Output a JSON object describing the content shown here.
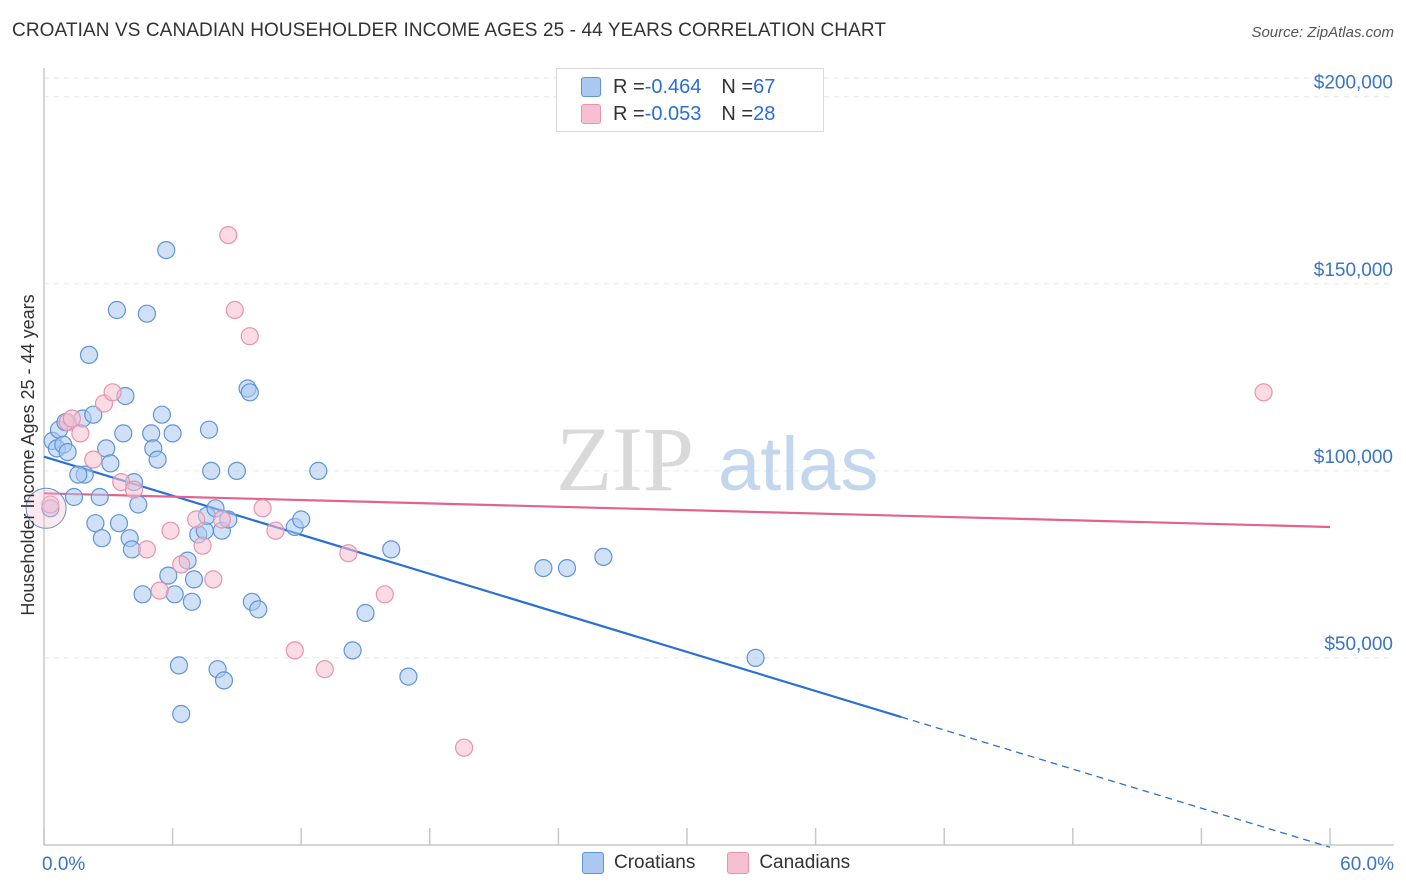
{
  "title": "CROATIAN VS CANADIAN HOUSEHOLDER INCOME AGES 25 - 44 YEARS CORRELATION CHART",
  "source": "Source: ZipAtlas.com",
  "watermark": {
    "zip": "ZIP",
    "atlas": "atlas"
  },
  "colors": {
    "croatians_fill": "#aac8f0",
    "croatians_stroke": "#5f95d8",
    "croatians_line": "#2a70d4",
    "canadians_fill": "#f7c0d0",
    "canadians_stroke": "#e892ad",
    "canadians_line": "#e0648c",
    "tick_label": "#3a75c4",
    "grid": "#e6e6e6"
  },
  "legend": {
    "rows": [
      {
        "r_label": "R = ",
        "r_value": "-0.464",
        "n_label": "N = ",
        "n_value": "67"
      },
      {
        "r_label": "R = ",
        "r_value": "-0.053",
        "n_label": "N = ",
        "n_value": "28"
      }
    ]
  },
  "bottom_legend": {
    "croatians": "Croatians",
    "canadians": "Canadians"
  },
  "chart_data": {
    "type": "scatter",
    "title": "CROATIAN VS CANADIAN HOUSEHOLDER INCOME AGES 25 - 44 YEARS CORRELATION CHART",
    "xlabel": "",
    "ylabel": "Householder Income Ages 25 - 44 years",
    "xlim": [
      0,
      60
    ],
    "ylim": [
      0,
      205000
    ],
    "x_tick_labels": [
      "0.0%",
      "60.0%"
    ],
    "y_ticks": [
      50000,
      100000,
      150000,
      200000
    ],
    "y_tick_labels": [
      "$50,000",
      "$100,000",
      "$150,000",
      "$200,000"
    ],
    "grid": true,
    "legend_position": "top-center",
    "series": [
      {
        "name": "Croatians",
        "r": -0.464,
        "n": 67,
        "trend": {
          "x0": 0,
          "y0": 103800,
          "x1": 40,
          "y1": 34200,
          "dashed_to_x": 60,
          "dashed_to_y": -600
        },
        "points": [
          [
            0.3,
            90000
          ],
          [
            0.4,
            108000
          ],
          [
            0.6,
            106000
          ],
          [
            0.7,
            111000
          ],
          [
            0.9,
            107000
          ],
          [
            1.0,
            113000
          ],
          [
            1.1,
            105000
          ],
          [
            1.4,
            93000
          ],
          [
            1.8,
            114000
          ],
          [
            1.9,
            99000
          ],
          [
            2.1,
            131000
          ],
          [
            2.3,
            115000
          ],
          [
            2.4,
            86000
          ],
          [
            2.6,
            93000
          ],
          [
            2.7,
            82000
          ],
          [
            2.9,
            106000
          ],
          [
            3.1,
            102000
          ],
          [
            3.4,
            143000
          ],
          [
            3.5,
            86000
          ],
          [
            3.7,
            110000
          ],
          [
            3.8,
            120000
          ],
          [
            4.0,
            82000
          ],
          [
            4.1,
            79000
          ],
          [
            4.2,
            97000
          ],
          [
            4.4,
            91000
          ],
          [
            4.6,
            67000
          ],
          [
            4.8,
            142000
          ],
          [
            5.0,
            110000
          ],
          [
            5.1,
            106000
          ],
          [
            5.3,
            103000
          ],
          [
            5.5,
            115000
          ],
          [
            5.7,
            159000
          ],
          [
            5.8,
            72000
          ],
          [
            6.0,
            110000
          ],
          [
            6.1,
            67000
          ],
          [
            6.3,
            48000
          ],
          [
            6.4,
            35000
          ],
          [
            6.7,
            76000
          ],
          [
            6.9,
            65000
          ],
          [
            7.0,
            71000
          ],
          [
            7.2,
            83000
          ],
          [
            7.5,
            84000
          ],
          [
            7.6,
            88000
          ],
          [
            7.7,
            111000
          ],
          [
            7.8,
            100000
          ],
          [
            8.0,
            90000
          ],
          [
            8.1,
            47000
          ],
          [
            8.3,
            84000
          ],
          [
            8.4,
            44000
          ],
          [
            8.6,
            87000
          ],
          [
            9.0,
            100000
          ],
          [
            9.5,
            122000
          ],
          [
            9.6,
            121000
          ],
          [
            9.7,
            65000
          ],
          [
            11.7,
            85000
          ],
          [
            12.0,
            87000
          ],
          [
            12.8,
            100000
          ],
          [
            14.4,
            52000
          ],
          [
            15.0,
            62000
          ],
          [
            16.2,
            79000
          ],
          [
            17.0,
            45000
          ],
          [
            23.3,
            74000
          ],
          [
            24.4,
            74000
          ],
          [
            26.1,
            77000
          ],
          [
            33.2,
            50000
          ],
          [
            10.0,
            63000
          ],
          [
            1.6,
            99000
          ]
        ]
      },
      {
        "name": "Canadians",
        "r": -0.053,
        "n": 28,
        "trend": {
          "x0": 0,
          "y0": 94000,
          "x1": 60,
          "y1": 85000
        },
        "points": [
          [
            0.3,
            91000
          ],
          [
            1.1,
            113000
          ],
          [
            1.3,
            114000
          ],
          [
            1.7,
            110000
          ],
          [
            2.3,
            103000
          ],
          [
            2.8,
            118000
          ],
          [
            3.2,
            121000
          ],
          [
            3.6,
            97000
          ],
          [
            4.2,
            95000
          ],
          [
            4.8,
            79000
          ],
          [
            5.4,
            68000
          ],
          [
            5.9,
            84000
          ],
          [
            6.4,
            75000
          ],
          [
            7.1,
            87000
          ],
          [
            7.4,
            80000
          ],
          [
            7.9,
            71000
          ],
          [
            8.3,
            87000
          ],
          [
            8.6,
            163000
          ],
          [
            8.9,
            143000
          ],
          [
            9.6,
            136000
          ],
          [
            10.2,
            90000
          ],
          [
            10.8,
            84000
          ],
          [
            11.7,
            52000
          ],
          [
            13.1,
            47000
          ],
          [
            14.2,
            78000
          ],
          [
            15.9,
            67000
          ],
          [
            19.6,
            26000
          ],
          [
            56.9,
            121000
          ]
        ]
      }
    ]
  }
}
